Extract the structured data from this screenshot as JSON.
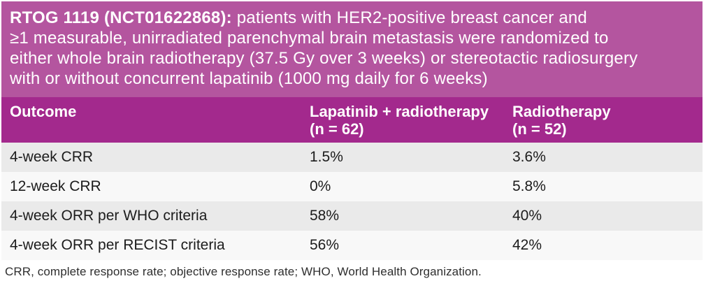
{
  "colors": {
    "banner_bg": "#b4559f",
    "table_header_bg": "#a3298d",
    "row_shaded_bg": "#eaeaea",
    "row_plain_bg": "#f8f8f8",
    "header_text": "#ffffff",
    "body_text": "#1c1c1c"
  },
  "banner": {
    "title_bold": "RTOG 1119 (NCT01622868):",
    "line1_rest": " patients with HER2-positive breast cancer and",
    "line2": "≥1 measurable, unirradiated parenchymal brain metastasis were randomized to",
    "line3": "either whole brain radiotherapy (37.5 Gy over 3 weeks) or stereotactic radiosurgery",
    "line4": "with or without concurrent lapatinib (1000 mg daily for 6 weeks)"
  },
  "table": {
    "columns": [
      {
        "label": "Outcome",
        "sub": ""
      },
      {
        "label": "Lapatinib + radiotherapy",
        "sub": "(n = 62)"
      },
      {
        "label": "Radiotherapy",
        "sub": "(n = 52)"
      }
    ],
    "rows": [
      {
        "outcome": "4-week CRR",
        "lapatinib_radiotherapy": "1.5%",
        "radiotherapy": "3.6%"
      },
      {
        "outcome": "12-week CRR",
        "lapatinib_radiotherapy": "0%",
        "radiotherapy": "5.8%"
      },
      {
        "outcome": "4-week ORR per WHO criteria",
        "lapatinib_radiotherapy": "58%",
        "radiotherapy": "40%"
      },
      {
        "outcome": "4-week ORR per RECIST criteria",
        "lapatinib_radiotherapy": "56%",
        "radiotherapy": "42%"
      }
    ]
  },
  "footnote": "CRR, complete response rate; objective response rate; WHO, World Health Organization.",
  "chart_data": {
    "type": "table",
    "title": "RTOG 1119 (NCT01622868): patients with HER2-positive breast cancer and ≥1 measurable, unirradiated parenchymal brain metastasis were randomized to either whole brain radiotherapy (37.5 Gy over 3 weeks) or stereotactic radiosurgery with or without concurrent lapatinib (1000 mg daily for 6 weeks)",
    "columns": [
      "Outcome",
      "Lapatinib + radiotherapy (n = 62)",
      "Radiotherapy (n = 52)"
    ],
    "rows": [
      [
        "4-week CRR",
        "1.5%",
        "3.6%"
      ],
      [
        "12-week CRR",
        "0%",
        "5.8%"
      ],
      [
        "4-week ORR per WHO criteria",
        "58%",
        "40%"
      ],
      [
        "4-week ORR per RECIST criteria",
        "56%",
        "42%"
      ]
    ],
    "footnote": "CRR, complete response rate; objective response rate; WHO, World Health Organization."
  }
}
